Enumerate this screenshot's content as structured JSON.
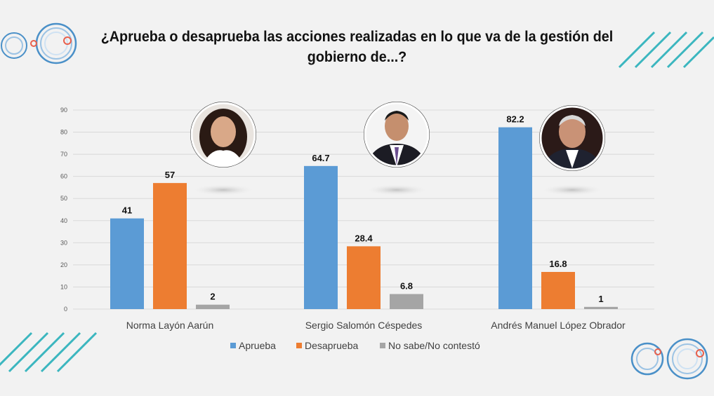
{
  "colors": {
    "aprueba": "#5b9bd5",
    "desaprueba": "#ed7d31",
    "no_sabe": "#a5a5a5",
    "accent_teal": "#3bb6bf",
    "accent_blue": "#4a90c8",
    "accent_orange": "#e8604c"
  },
  "chart_data": {
    "type": "bar",
    "title": "¿Aprueba o desaprueba las acciones realizadas en lo que va de la gestión del gobierno de...?",
    "categories": [
      "Norma Layón Aarún",
      "Sergio Salomón Céspedes",
      "Andrés Manuel López Obrador"
    ],
    "series": [
      {
        "name": "Aprueba",
        "values": [
          41,
          64.7,
          82.2
        ],
        "labels": [
          "41",
          "64.7",
          "82.2"
        ]
      },
      {
        "name": "Desaprueba",
        "values": [
          57,
          28.4,
          16.8
        ],
        "labels": [
          "57",
          "28.4",
          "16.8"
        ]
      },
      {
        "name": "No sabe/No contestó",
        "values": [
          2,
          6.8,
          1
        ],
        "labels": [
          "2",
          "6.8",
          "1"
        ]
      }
    ],
    "ylim": [
      0,
      90
    ],
    "yticks": [
      "0",
      "10",
      "20",
      "30",
      "40",
      "50",
      "60",
      "70",
      "80",
      "90"
    ],
    "grid": true,
    "legend": "bottom-center",
    "xlabel": "",
    "ylabel": ""
  }
}
